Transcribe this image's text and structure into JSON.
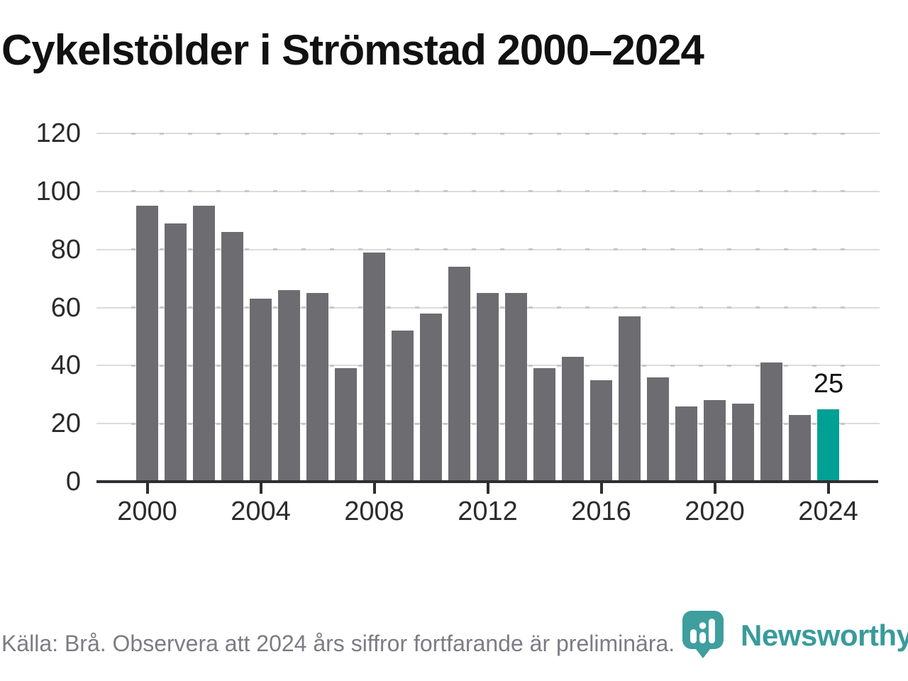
{
  "title": "Cykelstölder i Strömstad 2000–2024",
  "source_note": "Källa: Brå. Observera att 2024 års siffror fortfarande är preliminära.",
  "annotation": {
    "value_label": "25"
  },
  "logo": {
    "text": "Newsworthy",
    "icon": "bar-chart-pin-icon"
  },
  "colors": {
    "bar": "#6c6c71",
    "highlight": "#00a094",
    "grid": "#dcdcdc",
    "minor_dash": "#c8c8c8",
    "axis": "#2e2e32",
    "tick_label": "#2b2b2b",
    "title": "#111111",
    "note": "#7c7c84",
    "logo": "#399b9b"
  },
  "chart_data": {
    "type": "bar",
    "title": "Cykelstölder i Strömstad 2000–2024",
    "x": [
      2000,
      2001,
      2002,
      2003,
      2004,
      2005,
      2006,
      2007,
      2008,
      2009,
      2010,
      2011,
      2012,
      2013,
      2014,
      2015,
      2016,
      2017,
      2018,
      2019,
      2020,
      2021,
      2022,
      2023,
      2024
    ],
    "values": [
      95,
      89,
      95,
      86,
      63,
      66,
      65,
      39,
      79,
      52,
      58,
      74,
      65,
      65,
      39,
      43,
      35,
      57,
      36,
      26,
      28,
      27,
      41,
      23,
      25
    ],
    "highlight_x": 2024,
    "annotated_x": 2024,
    "annotation_text": "25",
    "xlabel": "",
    "ylabel": "",
    "ylim": [
      0,
      120
    ],
    "yticks": [
      0,
      20,
      40,
      60,
      80,
      100,
      120
    ],
    "xticks": [
      2000,
      2004,
      2008,
      2012,
      2016,
      2020,
      2024
    ],
    "grid": true,
    "legend": "none"
  }
}
